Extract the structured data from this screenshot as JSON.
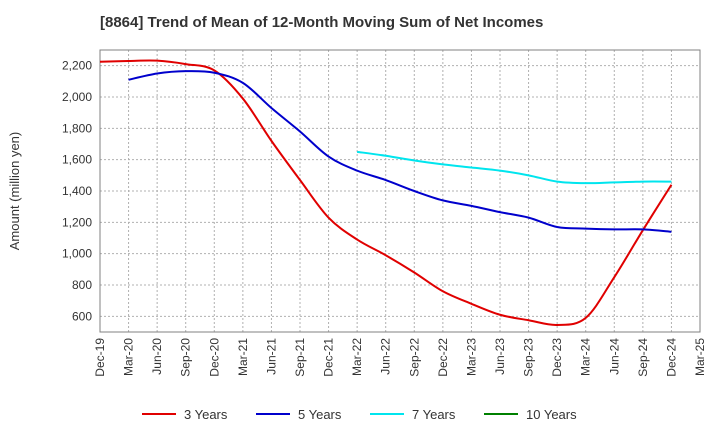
{
  "chart_data": {
    "type": "line",
    "title": "[8864]  Trend of Mean of 12-Month Moving Sum of Net Incomes",
    "xlabel": "",
    "ylabel": "Amount (million yen)",
    "ylim": [
      500,
      2300
    ],
    "yticks": [
      600,
      800,
      1000,
      1200,
      1400,
      1600,
      1800,
      2000,
      2200
    ],
    "ytick_labels": [
      "600",
      "800",
      "1,000",
      "1,200",
      "1,400",
      "1,600",
      "1,800",
      "2,000",
      "2,200"
    ],
    "x_categories": [
      "Dec-19",
      "Mar-20",
      "Jun-20",
      "Sep-20",
      "Dec-20",
      "Mar-21",
      "Jun-21",
      "Sep-21",
      "Dec-21",
      "Mar-22",
      "Jun-22",
      "Sep-22",
      "Dec-22",
      "Mar-23",
      "Jun-23",
      "Sep-23",
      "Dec-23",
      "Mar-24",
      "Jun-24",
      "Sep-24",
      "Dec-24",
      "Mar-25"
    ],
    "grid": true,
    "legend_position": "bottom",
    "series": [
      {
        "name": "3 Years",
        "color": "#e00000",
        "values": [
          2225,
          2230,
          2232,
          2210,
          2170,
          1990,
          1720,
          1470,
          1230,
          1090,
          990,
          880,
          760,
          680,
          610,
          575,
          545,
          590,
          850,
          1150,
          1440,
          null
        ]
      },
      {
        "name": "5 Years",
        "color": "#0000cc",
        "values": [
          null,
          2110,
          2150,
          2165,
          2155,
          2090,
          1930,
          1780,
          1620,
          1530,
          1470,
          1400,
          1340,
          1305,
          1265,
          1230,
          1170,
          1160,
          1155,
          1155,
          1140,
          null
        ]
      },
      {
        "name": "7 Years",
        "color": "#00e5ee",
        "values": [
          null,
          null,
          null,
          null,
          null,
          null,
          null,
          null,
          null,
          1650,
          1625,
          1595,
          1570,
          1550,
          1530,
          1500,
          1460,
          1450,
          1455,
          1460,
          1460,
          null
        ]
      },
      {
        "name": "10 Years",
        "color": "#008000",
        "values": [
          null,
          null,
          null,
          null,
          null,
          null,
          null,
          null,
          null,
          null,
          null,
          null,
          null,
          null,
          null,
          null,
          null,
          null,
          null,
          null,
          null,
          null
        ]
      }
    ]
  }
}
